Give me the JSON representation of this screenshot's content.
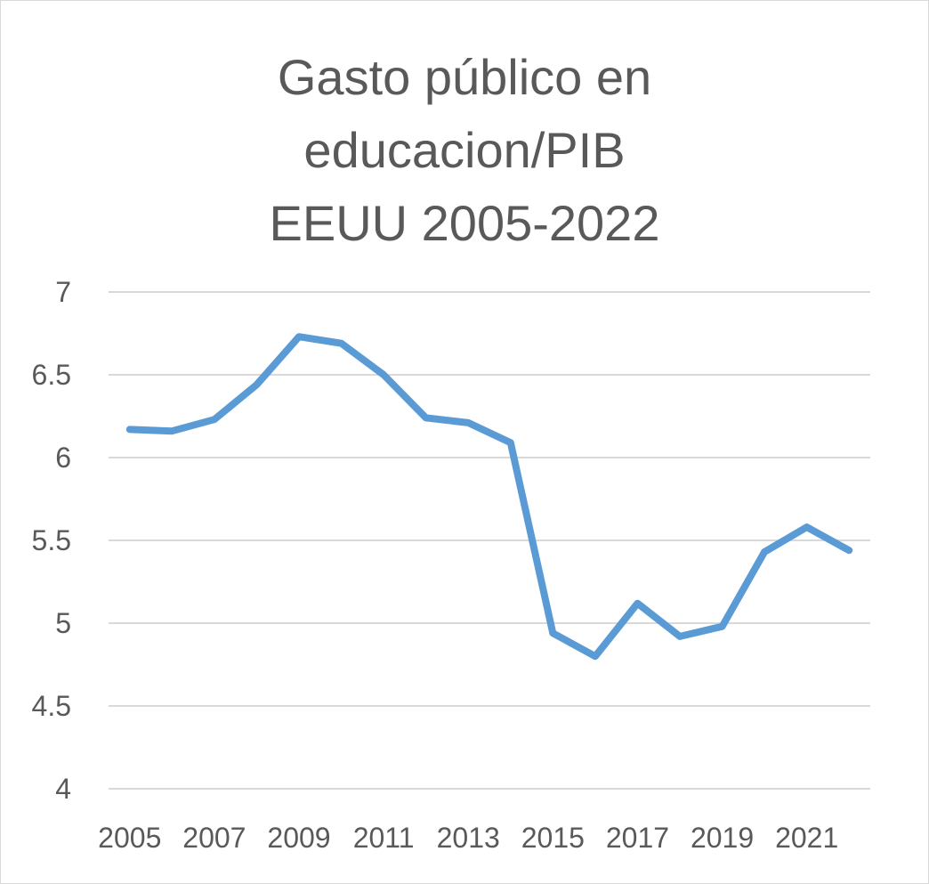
{
  "chart_data": {
    "type": "line",
    "title_lines": [
      "Gasto público en",
      "educacion/PIB",
      "EEUU 2005-2022"
    ],
    "xlabel": "",
    "ylabel": "",
    "ylim": [
      4,
      7
    ],
    "y_ticks": [
      4,
      4.5,
      5,
      5.5,
      6,
      6.5,
      7
    ],
    "y_tick_labels": [
      "4",
      "4.5",
      "5",
      "5.5",
      "6",
      "6.5",
      "7"
    ],
    "x": [
      2005,
      2006,
      2007,
      2008,
      2009,
      2010,
      2011,
      2012,
      2013,
      2014,
      2015,
      2016,
      2017,
      2018,
      2019,
      2020,
      2021,
      2022
    ],
    "x_tick_labels": [
      "2005",
      "2007",
      "2009",
      "2011",
      "2013",
      "2015",
      "2017",
      "2019",
      "2021"
    ],
    "series": [
      {
        "values": [
          6.17,
          6.16,
          6.23,
          6.44,
          6.73,
          6.69,
          6.5,
          6.24,
          6.21,
          6.09,
          4.94,
          4.8,
          5.12,
          4.92,
          4.98,
          5.43,
          5.58,
          5.44
        ],
        "color": "#5b9bd5"
      }
    ],
    "grid": true,
    "legend": "none"
  }
}
